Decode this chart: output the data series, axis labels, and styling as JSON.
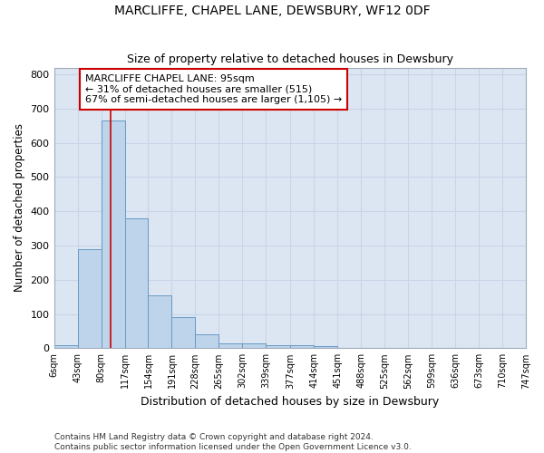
{
  "title": "MARCLIFFE, CHAPEL LANE, DEWSBURY, WF12 0DF",
  "subtitle": "Size of property relative to detached houses in Dewsbury",
  "xlabel": "Distribution of detached houses by size in Dewsbury",
  "ylabel": "Number of detached properties",
  "bin_edges": [
    6,
    43,
    80,
    117,
    154,
    191,
    228,
    265,
    302,
    339,
    377,
    414,
    451,
    488,
    525,
    562,
    599,
    636,
    673,
    710,
    747
  ],
  "bar_heights": [
    8,
    290,
    665,
    380,
    155,
    90,
    40,
    15,
    15,
    10,
    10,
    5,
    0,
    0,
    0,
    0,
    0,
    0,
    0,
    0
  ],
  "bar_color": "#bdd4ea",
  "bar_edge_color": "#6899c4",
  "grid_color": "#c8d4e8",
  "background_color": "#dce6f2",
  "property_size": 95,
  "annotation_line1": "MARCLIFFE CHAPEL LANE: 95sqm",
  "annotation_line2": "← 31% of detached houses are smaller (515)",
  "annotation_line3": "67% of semi-detached houses are larger (1,105) →",
  "annotation_box_color": "#ffffff",
  "annotation_box_edge_color": "#cc0000",
  "vline_color": "#cc0000",
  "ylim": [
    0,
    820
  ],
  "yticks": [
    0,
    100,
    200,
    300,
    400,
    500,
    600,
    700,
    800
  ],
  "footer": "Contains HM Land Registry data © Crown copyright and database right 2024.\nContains public sector information licensed under the Open Government Licence v3.0."
}
